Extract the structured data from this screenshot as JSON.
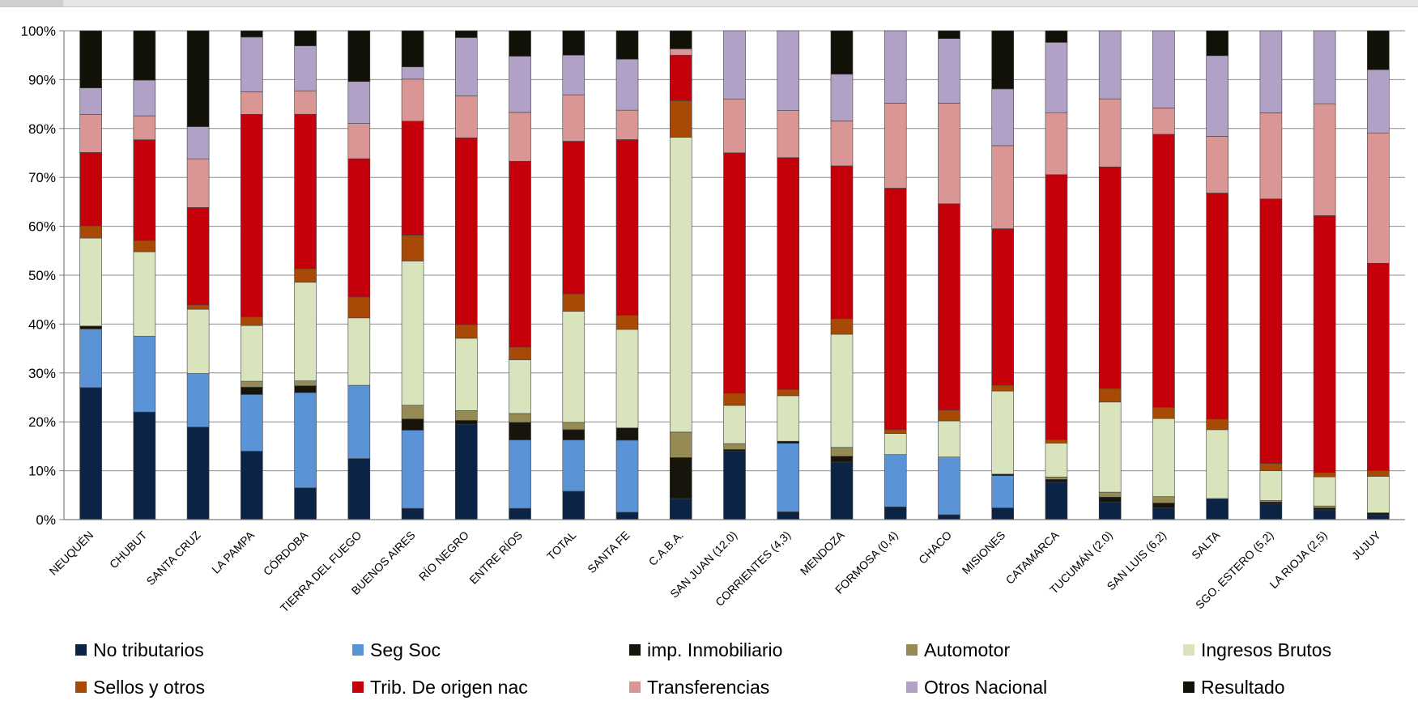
{
  "chart_data": {
    "type": "bar",
    "stacked": true,
    "percent_stacked": true,
    "categories": [
      "NEUQUÉN",
      "CHUBUT",
      "SANTA CRUZ",
      "LA PAMPA",
      "CÓRDOBA",
      "TIERRA DEL FUEGO",
      "BUENOS AIRES",
      "RÍO NEGRO",
      "ENTRE RÍOS",
      "TOTAL",
      "SANTA FE",
      "C.A.B.A.",
      "SAN JUAN (12.0)",
      "CORRIENTES (4,3)",
      "MENDOZA",
      "FORMOSA (0,4)",
      "CHACO",
      "MISIONES",
      "CATAMARCA",
      "TUCUMÁN (2.0)",
      "SAN LUIS (6,2)",
      "SALTA",
      "SGO. ESTERO (5,2)",
      "LA RIOJA (2,5)",
      "JUJUY"
    ],
    "ylim": [
      0,
      100
    ],
    "yticks": [
      "0%",
      "10%",
      "20%",
      "30%",
      "40%",
      "50%",
      "60%",
      "70%",
      "80%",
      "90%",
      "100%"
    ],
    "grid": true,
    "legend_position": "bottom",
    "series": [
      {
        "name": "No tributarios",
        "color": "#0b2345",
        "values": [
          27,
          22,
          19,
          14,
          6.5,
          12.5,
          2.3,
          19.5,
          2.3,
          5.8,
          1.5,
          4.3,
          14,
          1.6,
          11.8,
          2.6,
          1,
          2.4,
          7.7,
          3.6,
          2.4,
          4.3,
          3.2,
          2,
          1
        ]
      },
      {
        "name": "Seg Soc",
        "color": "#5b93d7",
        "values": [
          12,
          15.5,
          11,
          11.6,
          19.5,
          15,
          16,
          0,
          14,
          10.5,
          14.7,
          0,
          0,
          14,
          0,
          10.7,
          11.8,
          6.6,
          0,
          0,
          0,
          0,
          0,
          0,
          0
        ]
      },
      {
        "name": "imp. Inmobiliario",
        "color": "#16140b",
        "values": [
          0.6,
          0,
          0,
          1.5,
          1.4,
          0,
          2.3,
          0.8,
          3.6,
          2.1,
          2.5,
          8.4,
          0.3,
          0.4,
          1.2,
          0,
          0,
          0.3,
          0.6,
          1,
          1,
          0,
          0.4,
          0.4,
          0.4
        ]
      },
      {
        "name": "Automotor",
        "color": "#968a55",
        "values": [
          0,
          0,
          0,
          1.2,
          1,
          0,
          2.8,
          2,
          1.8,
          1.5,
          0,
          5.2,
          1.2,
          0,
          1.8,
          0,
          0,
          0,
          0.5,
          1,
          1.3,
          0,
          0.3,
          0.4,
          0
        ]
      },
      {
        "name": "Ingresos Brutos",
        "color": "#d9e3bc",
        "values": [
          18,
          17.3,
          13.2,
          11.4,
          20.2,
          13.8,
          29.5,
          14.8,
          11,
          22.7,
          20.1,
          60.3,
          7.8,
          9.3,
          23.2,
          4.3,
          7.4,
          17,
          7,
          18.4,
          16,
          14.1,
          6.1,
          6,
          7.5
        ]
      },
      {
        "name": "Sellos y otros",
        "color": "#a84a06",
        "values": [
          2.5,
          2.3,
          0.9,
          1.8,
          2.8,
          4.3,
          5.3,
          2.8,
          2.6,
          3.6,
          2.9,
          7.5,
          2.5,
          1.3,
          3.2,
          0.8,
          2.2,
          1.2,
          0.7,
          2.8,
          2.3,
          2.2,
          1.5,
          0.9,
          1.2
        ]
      },
      {
        "name": "Trib. De origen nac",
        "color": "#c5000b",
        "values": [
          15,
          20.6,
          20,
          41.4,
          31.6,
          28.3,
          23.3,
          38.2,
          38,
          31.2,
          35.8,
          9.3,
          49,
          47.3,
          31.3,
          49.4,
          42.2,
          32,
          54.7,
          45.2,
          55.9,
          46.2,
          54.1,
          52.8,
          42.6
        ]
      },
      {
        "name": "Transferencias",
        "color": "#d99694",
        "values": [
          7.8,
          4.9,
          10,
          4.6,
          4.8,
          7.2,
          8.6,
          8.6,
          10,
          9.5,
          6,
          1.3,
          11,
          9.6,
          9.2,
          17.4,
          20.6,
          17,
          12.8,
          13.9,
          5.4,
          11.6,
          17.6,
          23,
          26.8
        ]
      },
      {
        "name": "Otros Nacional",
        "color": "#b2a1c7",
        "values": [
          5.4,
          7.3,
          6.6,
          11.2,
          9.2,
          8.6,
          2.5,
          11.9,
          11.5,
          8.1,
          10.4,
          0,
          13.9,
          16.3,
          9.6,
          14.8,
          13.2,
          11.6,
          14.5,
          13.9,
          15.8,
          16.5,
          16.8,
          15,
          13
        ]
      },
      {
        "name": "Resultado",
        "color": "#111108",
        "values": [
          11.7,
          10.1,
          19.7,
          1.3,
          3.1,
          10.4,
          7.4,
          1.4,
          5.2,
          5,
          5.8,
          3.7,
          0,
          0,
          8.9,
          0,
          1.6,
          11.9,
          2.4,
          0,
          0,
          5.1,
          0,
          0,
          8
        ]
      }
    ]
  }
}
